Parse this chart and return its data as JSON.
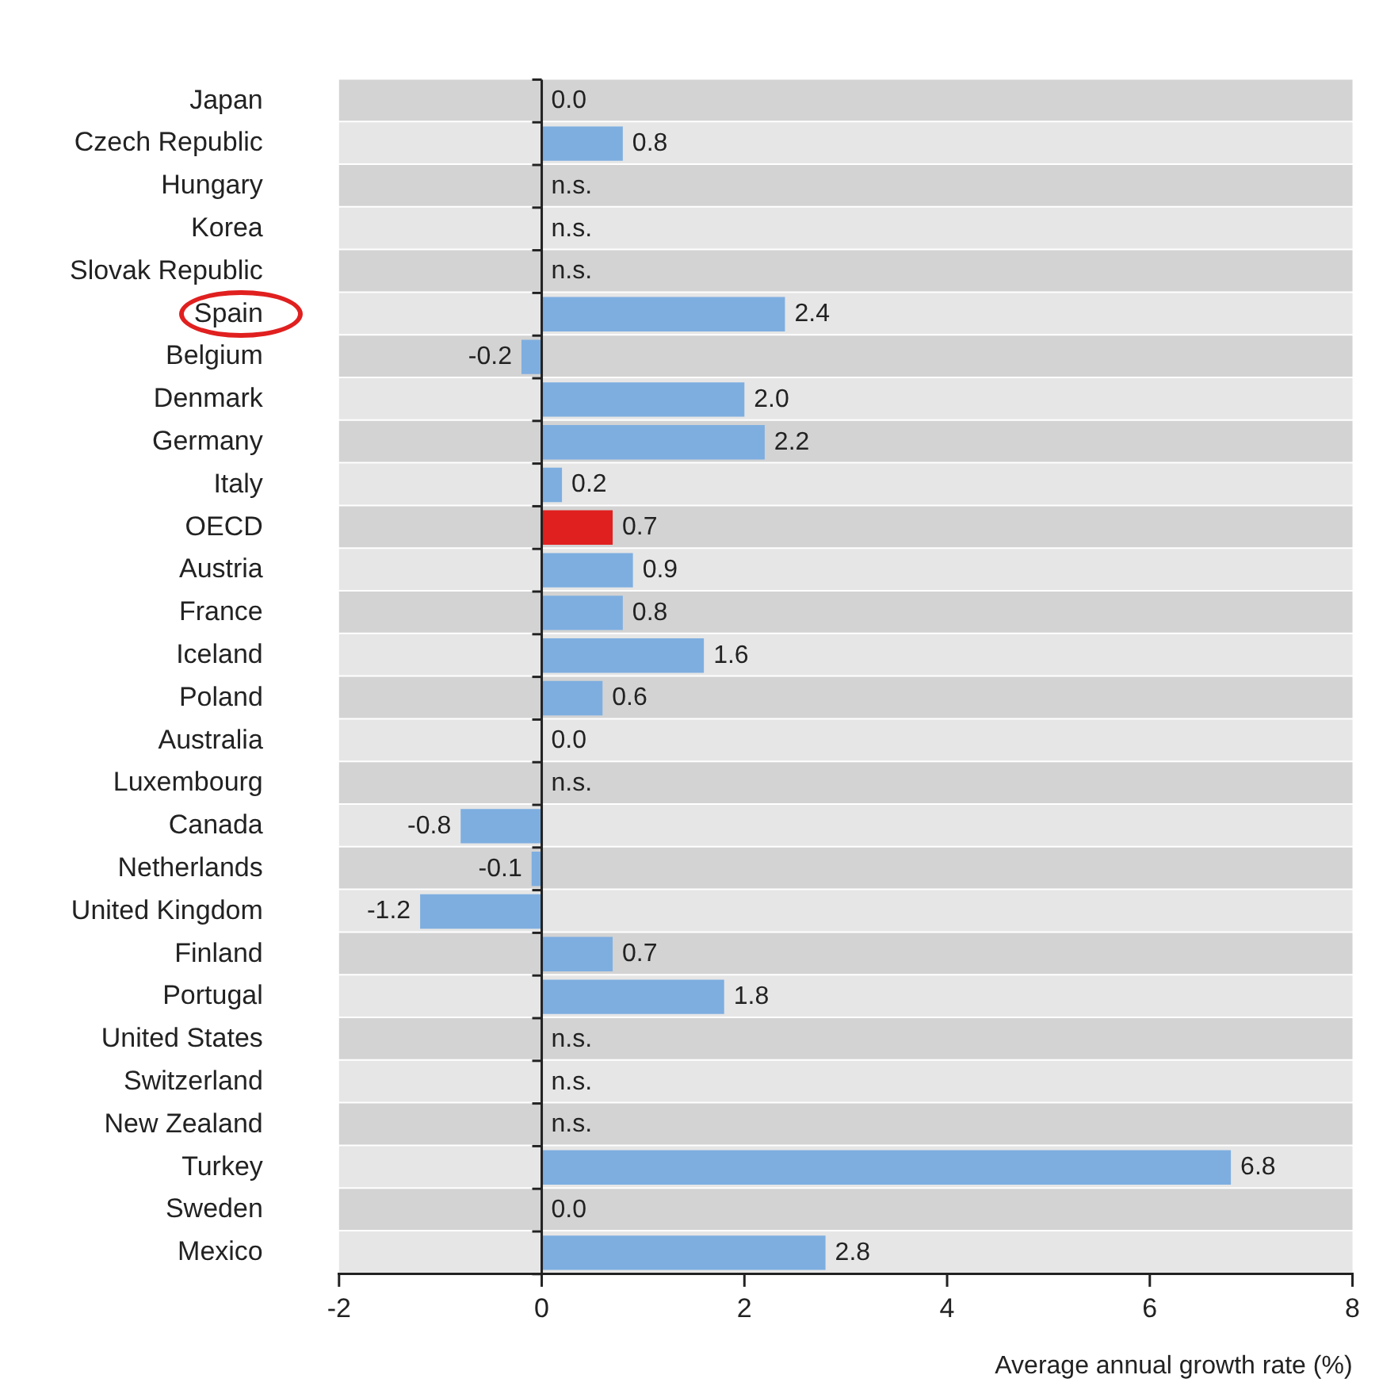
{
  "chart_data": {
    "type": "bar",
    "orientation": "horizontal",
    "xlabel": "Average annual growth rate (%)",
    "categories": [
      "Japan",
      "Czech Republic",
      "Hungary",
      "Korea",
      "Slovak Republic",
      "Spain",
      "Belgium",
      "Denmark",
      "Germany",
      "Italy",
      "OECD",
      "Austria",
      "France",
      "Iceland",
      "Poland",
      "Australia",
      "Luxembourg",
      "Canada",
      "Netherlands",
      "United Kingdom",
      "Finland",
      "Portugal",
      "United States",
      "Switzerland",
      "New Zealand",
      "Turkey",
      "Sweden",
      "Mexico"
    ],
    "values": [
      0.0,
      0.8,
      null,
      null,
      null,
      2.4,
      -0.2,
      2.0,
      2.2,
      0.2,
      0.7,
      0.9,
      0.8,
      1.6,
      0.6,
      0.0,
      null,
      -0.8,
      -0.1,
      -1.2,
      0.7,
      1.8,
      null,
      null,
      null,
      6.8,
      0.0,
      2.8
    ],
    "value_labels": [
      "0.0",
      "0.8",
      "n.s.",
      "n.s.",
      "n.s.",
      "2.4",
      "-0.2",
      "2.0",
      "2.2",
      "0.2",
      "0.7",
      "0.9",
      "0.8",
      "1.6",
      "0.6",
      "0.0",
      "n.s.",
      "-0.8",
      "-0.1",
      "-1.2",
      "0.7",
      "1.8",
      "n.s.",
      "n.s.",
      "n.s.",
      "6.8",
      "0.0",
      "2.8"
    ],
    "colors": [
      "#7eaee0",
      "#7eaee0",
      "#7eaee0",
      "#7eaee0",
      "#7eaee0",
      "#7eaee0",
      "#7eaee0",
      "#7eaee0",
      "#7eaee0",
      "#7eaee0",
      "#e0201f",
      "#7eaee0",
      "#7eaee0",
      "#7eaee0",
      "#7eaee0",
      "#7eaee0",
      "#7eaee0",
      "#7eaee0",
      "#7eaee0",
      "#7eaee0",
      "#7eaee0",
      "#7eaee0",
      "#7eaee0",
      "#7eaee0",
      "#7eaee0",
      "#7eaee0",
      "#7eaee0",
      "#7eaee0"
    ],
    "ref_lines": [
      {
        "axis": "x",
        "value": 0,
        "color": "#222222"
      }
    ],
    "xlim": [
      -2,
      8
    ],
    "xticks": [
      -2,
      0,
      2,
      4,
      6,
      8
    ],
    "grid": false,
    "legend": false
  }
}
